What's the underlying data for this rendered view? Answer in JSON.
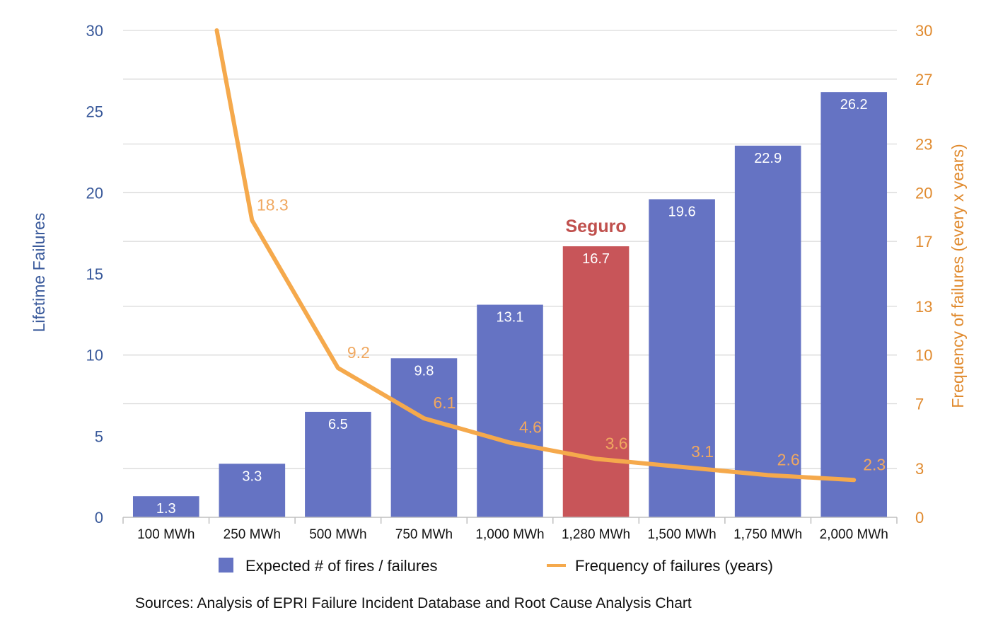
{
  "chart_data": {
    "type": "bar",
    "categories": [
      "100 MWh",
      "250 MWh",
      "500 MWh",
      "750 MWh",
      "1,000 MWh",
      "1,280 MWh",
      "1,500 MWh",
      "1,750 MWh",
      "2,000 MWh"
    ],
    "series": [
      {
        "name": "Expected # of fires / failures",
        "type": "bar",
        "axis": "left",
        "values": [
          1.3,
          3.3,
          6.5,
          9.8,
          13.1,
          16.7,
          19.6,
          22.9,
          26.2
        ],
        "value_labels": [
          "1.3",
          "3.3",
          "6.5",
          "9.8",
          "13.1",
          "16.7",
          "19.6",
          "22.9",
          "26.2"
        ],
        "color": "#6573c3",
        "highlight_index": 5,
        "highlight_color": "#c85559"
      },
      {
        "name": "Frequency of failures (years)",
        "type": "line",
        "axis": "right",
        "values": [
          null,
          18.3,
          9.2,
          6.1,
          4.6,
          3.6,
          3.1,
          2.6,
          2.3
        ],
        "value_labels": [
          "",
          "18.3",
          "9.2",
          "6.1",
          "4.6",
          "3.6",
          "3.1",
          "2.6",
          "2.3"
        ],
        "line_start_value": 30,
        "color": "#f5a94c"
      }
    ],
    "ylabel": "Lifetime Failures",
    "ylim": [
      0,
      30
    ],
    "yticks": [
      "0",
      "5",
      "10",
      "15",
      "20",
      "25",
      "30"
    ],
    "y2label": "Frequency of failures (every x years)",
    "y2lim": [
      0,
      30
    ],
    "y2ticks": [
      "0",
      "3",
      "7",
      "10",
      "13",
      "17",
      "20",
      "23",
      "27",
      "30"
    ],
    "annotation": {
      "text": "Seguro",
      "category_index": 5,
      "color": "#c0504d"
    },
    "legend": {
      "position": "bottom"
    },
    "grid": true,
    "source": "Sources: Analysis of EPRI Failure Incident Database and Root Cause Analysis Chart"
  }
}
